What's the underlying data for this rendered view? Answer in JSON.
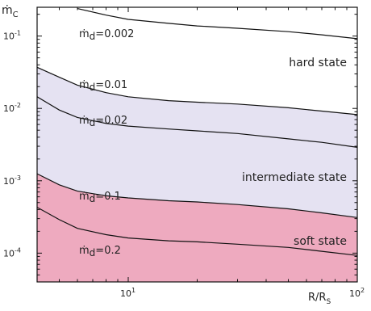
{
  "chart_data": {
    "type": "line",
    "title": "",
    "xlabel": "R/R",
    "xlabel_sub": "S",
    "ylabel": "ṁ",
    "ylabel_sub": "C",
    "xscale": "log",
    "yscale": "log",
    "xlim": [
      4,
      100
    ],
    "ylim": [
      4e-05,
      0.25
    ],
    "x_ticks": [
      {
        "value": 10,
        "base": "10",
        "exp": "1"
      },
      {
        "value": 100,
        "base": "10",
        "exp": "2"
      }
    ],
    "y_ticks": [
      {
        "value": 0.1,
        "base": "10",
        "exp": "-1"
      },
      {
        "value": 0.01,
        "base": "10",
        "exp": "-2"
      },
      {
        "value": 0.001,
        "base": "10",
        "exp": "-3"
      },
      {
        "value": 0.0001,
        "base": "10",
        "exp": "-4"
      }
    ],
    "series": [
      {
        "label_prefix": "ṁ",
        "label_sub": "d",
        "label_value": "=0.002",
        "x": [
          6,
          8,
          10,
          15,
          20,
          30,
          50,
          70,
          100
        ],
        "y": [
          0.24,
          0.195,
          0.17,
          0.15,
          0.138,
          0.128,
          0.115,
          0.104,
          0.092
        ]
      },
      {
        "label_prefix": "ṁ",
        "label_sub": "d",
        "label_value": "=0.01",
        "x": [
          4,
          5,
          6,
          8,
          10,
          15,
          20,
          30,
          50,
          70,
          100
        ],
        "y": [
          0.037,
          0.027,
          0.021,
          0.0165,
          0.0145,
          0.0128,
          0.0122,
          0.0115,
          0.0102,
          0.0092,
          0.0082
        ]
      },
      {
        "label_prefix": "ṁ",
        "label_sub": "d",
        "label_value": "=0.02",
        "x": [
          4,
          5,
          6,
          8,
          10,
          15,
          20,
          30,
          50,
          70,
          100
        ],
        "y": [
          0.0145,
          0.0095,
          0.0075,
          0.0062,
          0.0057,
          0.0052,
          0.0049,
          0.0045,
          0.0038,
          0.0034,
          0.0029
        ]
      },
      {
        "label_prefix": "ṁ",
        "label_sub": "d",
        "label_value": "=0.1",
        "x": [
          4,
          5,
          6,
          8,
          10,
          15,
          20,
          30,
          50,
          70,
          100
        ],
        "y": [
          0.00125,
          0.00088,
          0.00072,
          0.00062,
          0.00058,
          0.00053,
          0.00051,
          0.00047,
          0.00041,
          0.00036,
          0.00031
        ]
      },
      {
        "label_prefix": "ṁ",
        "label_sub": "d",
        "label_value": "=0.2",
        "x": [
          4,
          5,
          6,
          8,
          10,
          15,
          20,
          30,
          50,
          70,
          100
        ],
        "y": [
          0.00043,
          0.00029,
          0.00022,
          0.00018,
          0.000162,
          0.000148,
          0.000143,
          0.000133,
          0.00012,
          0.000106,
          9.3e-05
        ]
      }
    ],
    "regions": [
      {
        "name": "hard state",
        "color": "#ffffff"
      },
      {
        "name": "intermediate state",
        "color": "#e5e2f2"
      },
      {
        "name": "soft state",
        "color": "#eeaabf"
      }
    ],
    "grid": false
  }
}
